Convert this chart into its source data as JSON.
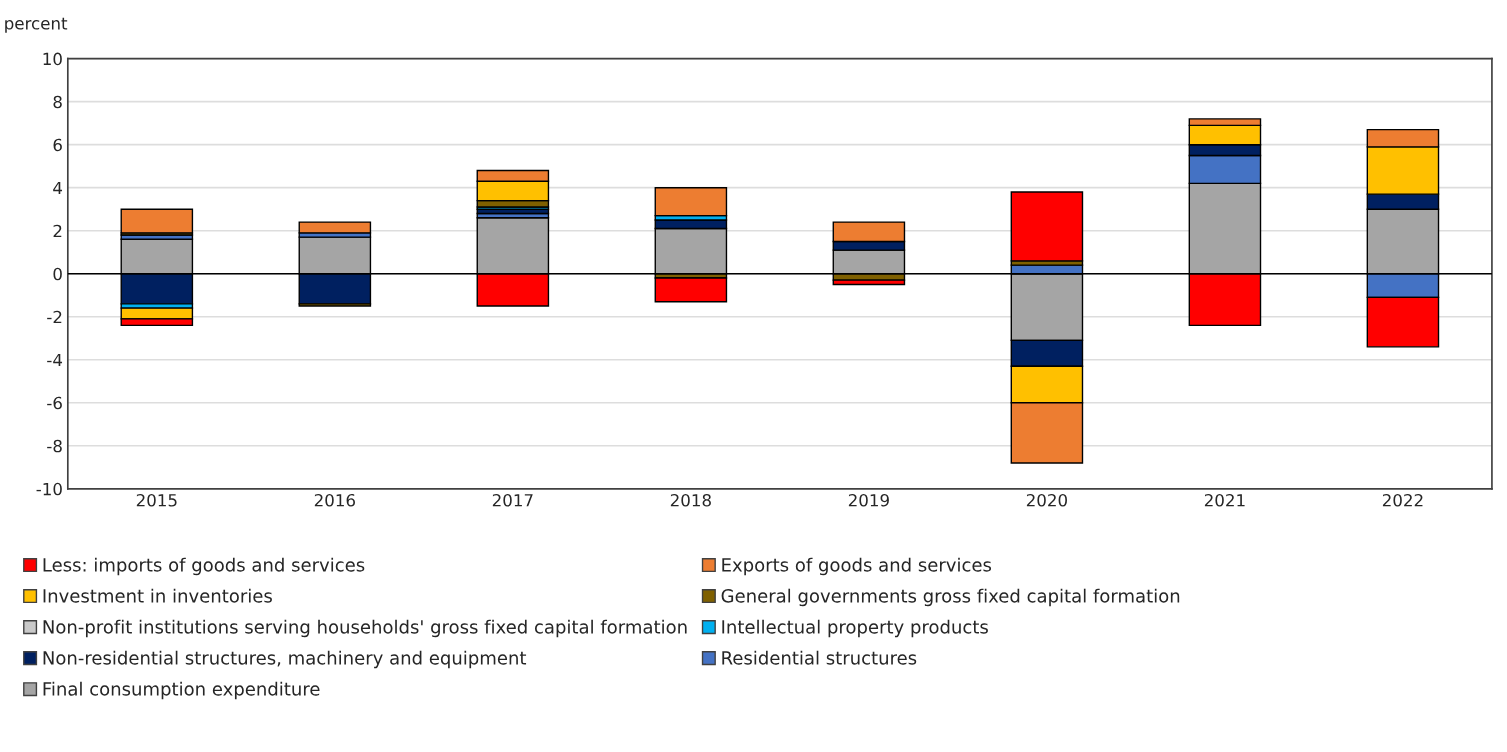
{
  "chart_data": {
    "type": "bar",
    "stacked": true,
    "ylabel": "percent",
    "categories": [
      "2015",
      "2016",
      "2017",
      "2018",
      "2019",
      "2020",
      "2021",
      "2022"
    ],
    "series": [
      {
        "name": "Final consumption expenditure",
        "color": "#a5a5a5",
        "values": [
          1.6,
          1.7,
          2.6,
          2.1,
          1.1,
          -3.1,
          4.2,
          3.0
        ]
      },
      {
        "name": "Residential structures",
        "color": "#4472c4",
        "values": [
          0.2,
          0.2,
          0.2,
          null,
          null,
          0.4,
          1.3,
          -1.1
        ]
      },
      {
        "name": "Non-residential structures, machinery and equipment",
        "color": "#002060",
        "values": [
          -1.4,
          -1.4,
          0.2,
          0.4,
          0.4,
          -1.2,
          0.5,
          0.7
        ]
      },
      {
        "name": "Intellectual property products",
        "color": "#00b0f0",
        "values": [
          -0.2,
          null,
          0.1,
          0.2,
          null,
          null,
          null,
          null
        ]
      },
      {
        "name": "Non-profit institutions serving households' gross fixed capital formation",
        "color": "#c9c9c9",
        "values": [
          null,
          null,
          null,
          null,
          null,
          null,
          null,
          null
        ]
      },
      {
        "name": "General governments gross fixed capital formation",
        "color": "#7f6000",
        "values": [
          0.1,
          -0.1,
          0.3,
          -0.2,
          -0.3,
          0.2,
          null,
          null
        ]
      },
      {
        "name": "Investment in inventories",
        "color": "#ffc000",
        "values": [
          -0.5,
          null,
          0.9,
          null,
          null,
          -1.7,
          0.9,
          2.2
        ]
      },
      {
        "name": "Exports of goods and services",
        "color": "#ed7d31",
        "values": [
          1.1,
          0.5,
          0.5,
          1.3,
          0.9,
          -2.8,
          0.3,
          0.8
        ]
      },
      {
        "name": "Less: imports of goods and services",
        "color": "#ff0000",
        "values": [
          -0.3,
          null,
          -1.5,
          -1.1,
          -0.2,
          3.2,
          -2.4,
          -2.3
        ]
      }
    ],
    "ylim": [
      -10,
      10
    ],
    "yticks": [
      -10,
      -8,
      -6,
      -4,
      -2,
      0,
      2,
      4,
      6,
      8,
      10
    ],
    "grid": "y",
    "legend": "bottom"
  }
}
